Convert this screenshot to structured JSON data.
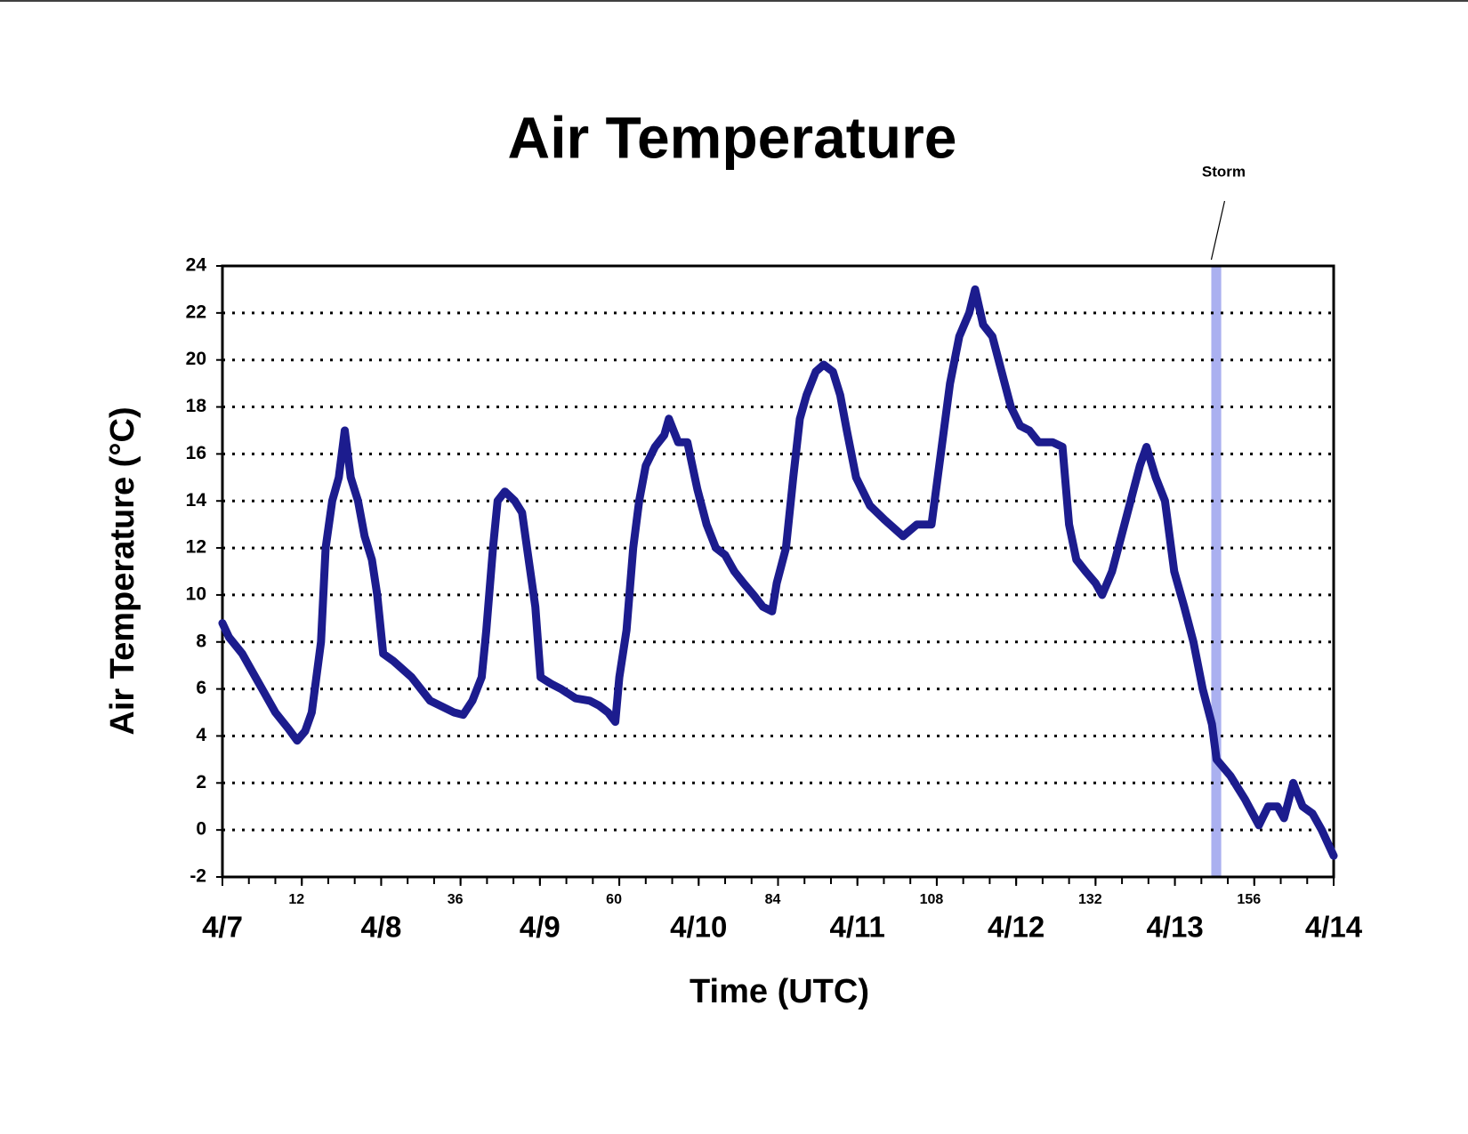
{
  "chart_data": {
    "type": "line",
    "title": "Air Temperature",
    "xlabel": "Time (UTC)",
    "ylabel": "Air Temperature (°C)",
    "color": "#1c1c8e",
    "grid": true,
    "xlim": [
      0,
      168
    ],
    "ylim": [
      -2,
      24
    ],
    "yticks": [
      -2,
      0,
      2,
      4,
      6,
      8,
      10,
      12,
      14,
      16,
      18,
      20,
      22,
      24
    ],
    "xticks": [
      {
        "value": 0,
        "label": "4/7"
      },
      12,
      {
        "value": 24,
        "label": "4/8"
      },
      36,
      {
        "value": 48,
        "label": "4/9"
      },
      60,
      {
        "value": 72,
        "label": "4/10"
      },
      84,
      {
        "value": 96,
        "label": "4/11"
      },
      108,
      {
        "value": 120,
        "label": "4/12"
      },
      132,
      {
        "value": 144,
        "label": "4/13"
      },
      156,
      {
        "value": 168,
        "label": "4/14"
      }
    ],
    "xminor": [
      0,
      4,
      8,
      12,
      16,
      20,
      24,
      28,
      32,
      36,
      40,
      44,
      48,
      52,
      56,
      60,
      64,
      68,
      72,
      76,
      80,
      84,
      88,
      92,
      96,
      100,
      104,
      108,
      112,
      116,
      120,
      124,
      128,
      132,
      136,
      140,
      144,
      148,
      152,
      156,
      160,
      164,
      168
    ],
    "annotations": [
      {
        "text": "Storm",
        "xrange": [
          149.5,
          151
        ],
        "color": "#aab0f0"
      }
    ],
    "x": [
      0,
      1,
      3,
      4,
      6,
      8,
      10,
      11.3,
      12.5,
      13.5,
      14.9,
      15.6,
      16.6,
      17.6,
      18.5,
      19.4,
      20.5,
      21.5,
      22.6,
      23.4,
      24.3,
      25.8,
      28.6,
      31.4,
      35,
      36.4,
      37.8,
      39.2,
      39.9,
      40.9,
      41.6,
      42.7,
      44.2,
      45.3,
      46.3,
      47.3,
      48.1,
      49.8,
      51.2,
      53.4,
      55.5,
      56.9,
      58.3,
      59.4,
      60,
      61.1,
      62.1,
      63,
      64,
      65.4,
      66.8,
      67.5,
      68.9,
      70.3,
      71.8,
      73.2,
      74.6,
      76,
      77.4,
      78.8,
      80.3,
      81.7,
      83.1,
      83.8,
      85.2,
      86.3,
      87.3,
      88.3,
      89.7,
      90.9,
      92.3,
      93.4,
      94.4,
      95.8,
      97.9,
      100.1,
      102.9,
      105,
      107.2,
      108.6,
      110,
      111.4,
      112.9,
      113.8,
      115,
      116.4,
      117.8,
      119.2,
      120.6,
      122,
      123.4,
      125.5,
      127,
      128,
      129.1,
      130.5,
      132,
      133,
      134.5,
      135.9,
      137.3,
      138.7,
      139.7,
      141.1,
      142.5,
      143.9,
      145.4,
      146.8,
      148.2,
      149.6,
      150.3,
      152.4,
      154.6,
      156.7,
      158.1,
      159.5,
      160.5,
      161.9,
      163.3,
      164.8,
      166.2,
      168
    ],
    "values": [
      8.8,
      8.2,
      7.5,
      7.0,
      6.0,
      5.0,
      4.3,
      3.8,
      4.2,
      5.0,
      8,
      12,
      14,
      15,
      17,
      15,
      14,
      12.5,
      11.5,
      10,
      7.5,
      7.2,
      6.5,
      5.5,
      5.0,
      4.9,
      5.5,
      6.5,
      8.5,
      12,
      14,
      14.4,
      14.0,
      13.5,
      11.5,
      9.5,
      6.5,
      6.2,
      6.0,
      5.6,
      5.5,
      5.3,
      5.0,
      4.6,
      6.5,
      8.5,
      12,
      14,
      15.5,
      16.3,
      16.8,
      17.5,
      16.5,
      16.5,
      14.5,
      13,
      12,
      11.7,
      11,
      10.5,
      10,
      9.5,
      9.3,
      10.5,
      12,
      15,
      17.5,
      18.5,
      19.5,
      19.8,
      19.5,
      18.5,
      17,
      15,
      13.8,
      13.2,
      12.5,
      13.0,
      13.0,
      16,
      19,
      21,
      22,
      23,
      21.5,
      21,
      19.5,
      18.0,
      17.2,
      17,
      16.5,
      16.5,
      16.3,
      13,
      11.5,
      11,
      10.5,
      10,
      11,
      12.5,
      14,
      15.5,
      16.3,
      15,
      14,
      11,
      9.5,
      8,
      6,
      4.5,
      3.0,
      2.3,
      1.3,
      0.2,
      1.0,
      1.0,
      0.5,
      2.0,
      1.0,
      0.7,
      0,
      -1.1
    ]
  }
}
